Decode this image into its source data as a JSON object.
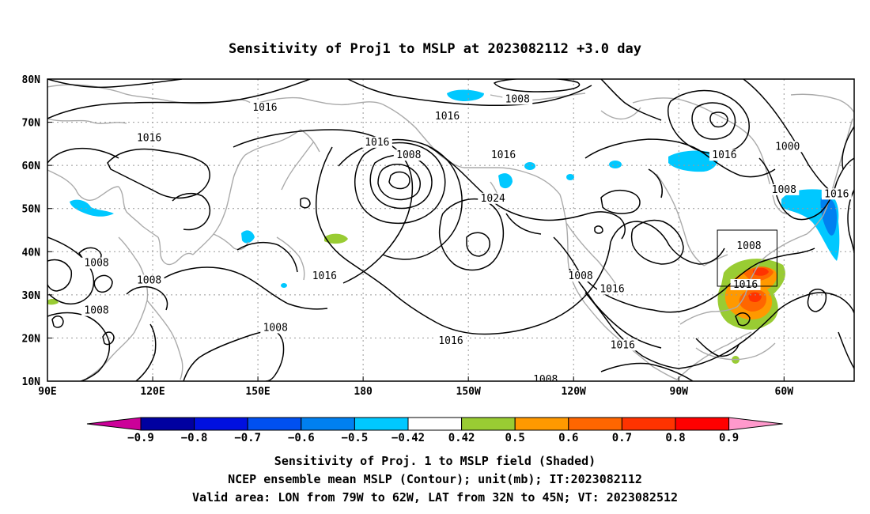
{
  "title": "Sensitivity of Proj1 to MSLP at 2023082112 +3.0 day",
  "map": {
    "lat_labels": [
      "80N",
      "70N",
      "60N",
      "50N",
      "40N",
      "30N",
      "20N",
      "10N"
    ],
    "lon_labels": [
      "90E",
      "120E",
      "150E",
      "180",
      "150W",
      "120W",
      "90W",
      "60W"
    ],
    "lon_range": [
      90,
      320
    ],
    "lat_range": [
      10,
      80
    ],
    "grid": true,
    "coastline_color": "#aaaaaa",
    "contour_color": "#000000",
    "contour_labels": [
      {
        "text": "1016",
        "lon": 152,
        "lat": 73
      },
      {
        "text": "1016",
        "lon": 119,
        "lat": 66
      },
      {
        "text": "1008",
        "lon": 224,
        "lat": 75
      },
      {
        "text": "1016",
        "lon": 204,
        "lat": 71
      },
      {
        "text": "1016",
        "lon": 184,
        "lat": 65
      },
      {
        "text": "1008",
        "lon": 193,
        "lat": 62
      },
      {
        "text": "1016",
        "lon": 220,
        "lat": 62
      },
      {
        "text": "1016",
        "lon": 283,
        "lat": 62
      },
      {
        "text": "1000",
        "lon": 301,
        "lat": 64
      },
      {
        "text": "1024",
        "lon": 217,
        "lat": 52
      },
      {
        "text": "1008",
        "lon": 300,
        "lat": 54
      },
      {
        "text": "1016",
        "lon": 315,
        "lat": 53
      },
      {
        "text": "1008",
        "lon": 104,
        "lat": 37
      },
      {
        "text": "1008",
        "lon": 119,
        "lat": 33
      },
      {
        "text": "1008",
        "lon": 104,
        "lat": 26
      },
      {
        "text": "1016",
        "lon": 169,
        "lat": 34
      },
      {
        "text": "1008",
        "lon": 155,
        "lat": 22
      },
      {
        "text": "1008",
        "lon": 242,
        "lat": 34
      },
      {
        "text": "1016",
        "lon": 251,
        "lat": 31
      },
      {
        "text": "1016",
        "lon": 289,
        "lat": 32
      },
      {
        "text": "1008",
        "lon": 290,
        "lat": 41
      },
      {
        "text": "1016",
        "lon": 205,
        "lat": 19
      },
      {
        "text": "1016",
        "lon": 254,
        "lat": 18
      },
      {
        "text": "1008",
        "lon": 232,
        "lat": 10
      }
    ],
    "valid_area": {
      "lon_min": 281,
      "lon_max": 298,
      "lat_min": 32,
      "lat_max": 45
    }
  },
  "colorbar": {
    "labels": [
      "−0.9",
      "−0.8",
      "−0.7",
      "−0.6",
      "−0.5",
      "−0.42",
      "0.42",
      "0.5",
      "0.6",
      "0.7",
      "0.8",
      "0.9"
    ],
    "colors": [
      "#0000a0",
      "#0010e0",
      "#0050f0",
      "#0080f0",
      "#00c8ff",
      "#ffffff",
      "#99cc33",
      "#ff9900",
      "#ff6600",
      "#ff3300",
      "#ff0000"
    ],
    "min_color": "#cc0099",
    "max_color": "#ff99cc"
  },
  "caption": {
    "line1": "Sensitivity of Proj. 1 to MSLP field (Shaded)",
    "line2": "NCEP ensemble mean MSLP (Contour); unit(mb); IT:2023082112",
    "line3": "Valid area: LON from 79W to 62W, LAT from 32N to 45N; VT: 2023082512"
  }
}
